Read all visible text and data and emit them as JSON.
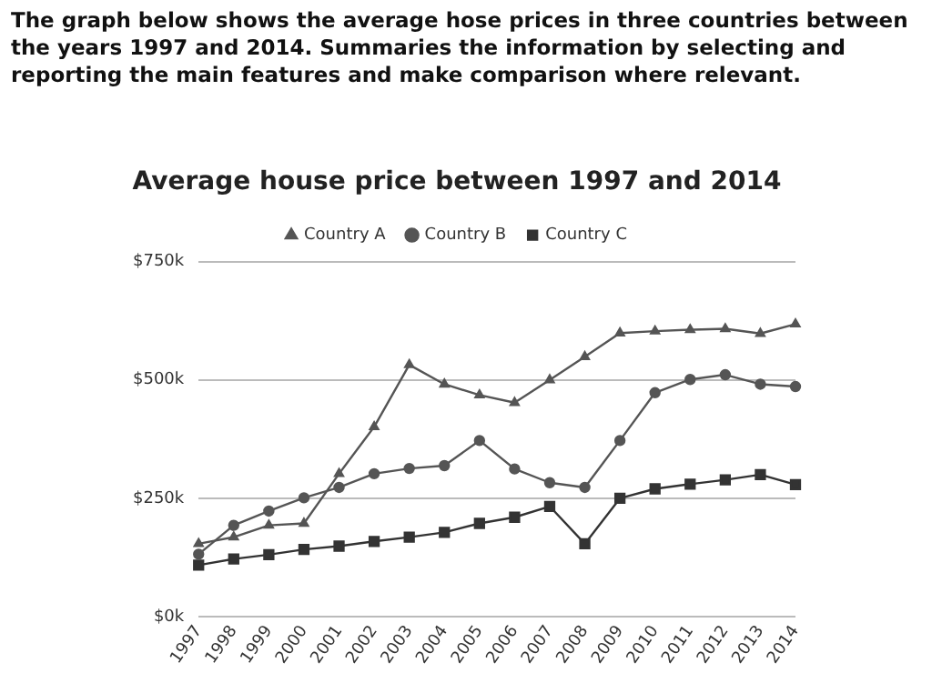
{
  "chart_data": {
    "type": "line",
    "title": "Average house price between 1997 and 2014",
    "annotations": [
      "The graph below shows the average hose prices in three countries between the years 1997 and 2014. Summaries the information by selecting and reporting the main features and make comparison where relevant."
    ],
    "categories": [
      "1997",
      "1998",
      "1999",
      "2000",
      "2001",
      "2002",
      "2003",
      "2004",
      "2005",
      "2006",
      "2007",
      "2008",
      "2009",
      "2010",
      "2011",
      "2012",
      "2013",
      "2014"
    ],
    "series": [
      {
        "name": "Country A",
        "color": "#555555",
        "marker": "triangle",
        "values": [
          154,
          168,
          193,
          197,
          302,
          401,
          532,
          491,
          468,
          452,
          500,
          549,
          599,
          603,
          606,
          608,
          598,
          618
        ]
      },
      {
        "name": "Country B",
        "color": "#555555",
        "marker": "circle",
        "values": [
          132,
          193,
          223,
          251,
          273,
          302,
          313,
          319,
          372,
          312,
          283,
          273,
          372,
          473,
          501,
          511,
          491,
          486
        ]
      },
      {
        "name": "Country C",
        "color": "#333333",
        "marker": "square",
        "values": [
          109,
          122,
          131,
          142,
          149,
          159,
          168,
          178,
          197,
          210,
          233,
          154,
          250,
          270,
          280,
          289,
          300,
          279
        ]
      }
    ],
    "ylim": [
      0,
      750
    ],
    "yticks": [
      {
        "value": 0,
        "label": "$0k"
      },
      {
        "value": 250,
        "label": "$250k"
      },
      {
        "value": 500,
        "label": "$500k"
      },
      {
        "value": 750,
        "label": "$750k"
      }
    ],
    "grid": "y",
    "legend": "top",
    "line_style": "solid"
  }
}
